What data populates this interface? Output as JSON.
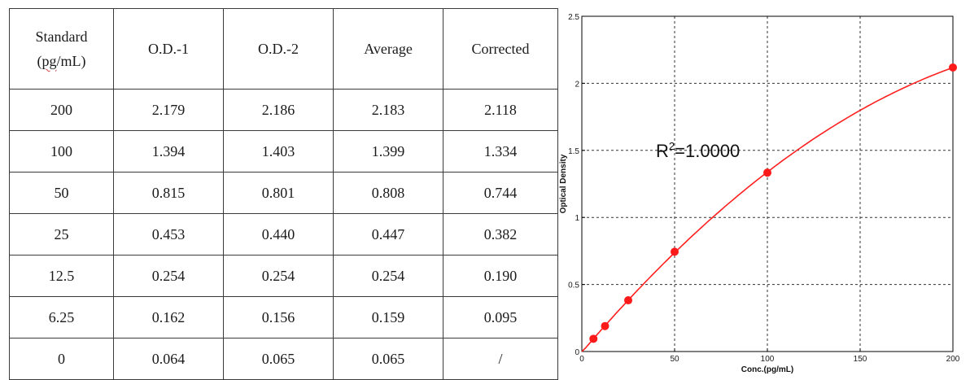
{
  "table": {
    "header": {
      "standard_line1": "Standard",
      "standard_line2_pre": "(",
      "standard_line2_word": "pg",
      "standard_line2_post": "/mL)",
      "od1": "O.D.-1",
      "od2": "O.D.-2",
      "average": "Average",
      "corrected": "Corrected"
    },
    "rows": [
      {
        "standard": "200",
        "od1": "2.179",
        "od2": "2.186",
        "average": "2.183",
        "corrected": "2.118"
      },
      {
        "standard": "100",
        "od1": "1.394",
        "od2": "1.403",
        "average": "1.399",
        "corrected": "1.334"
      },
      {
        "standard": "50",
        "od1": "0.815",
        "od2": "0.801",
        "average": "0.808",
        "corrected": "0.744"
      },
      {
        "standard": "25",
        "od1": "0.453",
        "od2": "0.440",
        "average": "0.447",
        "corrected": "0.382"
      },
      {
        "standard": "12.5",
        "od1": "0.254",
        "od2": "0.254",
        "average": "0.254",
        "corrected": "0.190"
      },
      {
        "standard": "6.25",
        "od1": "0.162",
        "od2": "0.156",
        "average": "0.159",
        "corrected": "0.095"
      },
      {
        "standard": "0",
        "od1": "0.064",
        "od2": "0.065",
        "average": "0.065",
        "corrected": "/"
      }
    ]
  },
  "chart_data": {
    "type": "scatter",
    "xlabel": "Conc.(pg/mL)",
    "ylabel": "Optical Density",
    "xlim": [
      0,
      200
    ],
    "ylim": [
      0,
      2.5
    ],
    "x_ticks": [
      "0",
      "50",
      "100",
      "150",
      "200"
    ],
    "y_ticks": [
      "0",
      "0.5",
      "1",
      "1.5",
      "2",
      "2.5"
    ],
    "grid": true,
    "annotation": {
      "base": "R",
      "sup": "2",
      "rest": "=1.0000"
    },
    "points": {
      "x": [
        6.25,
        12.5,
        25,
        50,
        100,
        200
      ],
      "y": [
        0.095,
        0.19,
        0.382,
        0.744,
        1.334,
        2.118
      ]
    },
    "point_color": "#ff1a1a",
    "curve_color": "#ff2020"
  }
}
